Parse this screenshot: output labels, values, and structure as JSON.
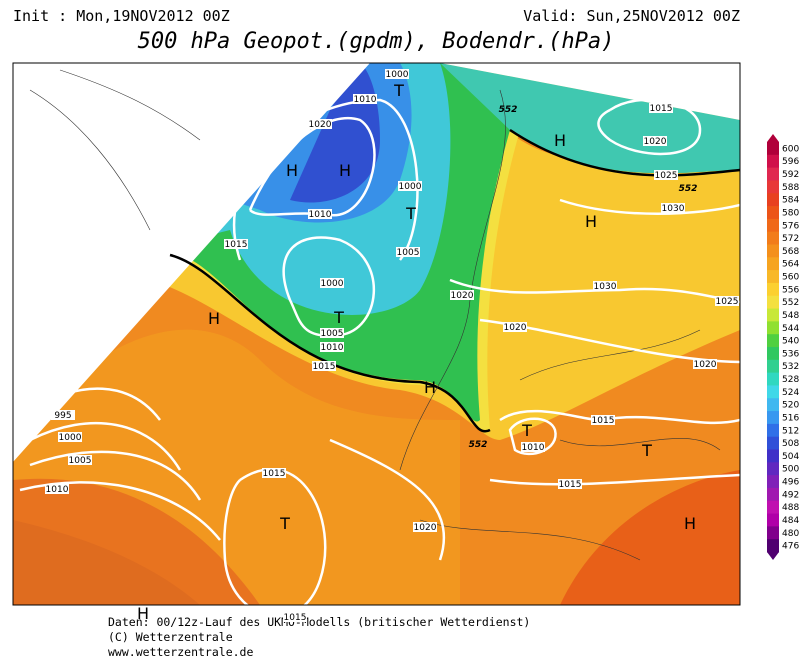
{
  "header": {
    "init": "Init : Mon,19NOV2012 00Z",
    "valid": "Valid: Sun,25NOV2012 00Z",
    "title": "500 hPa Geopot.(gpdm), Bodendr.(hPa)"
  },
  "legend": {
    "ticks": [
      600,
      596,
      592,
      588,
      584,
      580,
      576,
      572,
      568,
      564,
      560,
      556,
      552,
      548,
      544,
      540,
      536,
      532,
      528,
      524,
      520,
      516,
      512,
      508,
      504,
      500,
      496,
      492,
      488,
      484,
      480,
      476
    ],
    "colors": [
      "#b0003a",
      "#d0104a",
      "#e02850",
      "#e83838",
      "#e84020",
      "#ec5418",
      "#f06818",
      "#f27c1a",
      "#f4901c",
      "#f6a420",
      "#f8b828",
      "#fcd030",
      "#f4e040",
      "#c8e838",
      "#90e030",
      "#50d040",
      "#30c860",
      "#30d090",
      "#30d8c0",
      "#40d8e8",
      "#40b8f0",
      "#3898f0",
      "#3070e8",
      "#3050d8",
      "#4030c8",
      "#6028c0",
      "#8020b8",
      "#a018b0",
      "#c010b0",
      "#b000a8",
      "#80008c",
      "#500070"
    ]
  },
  "geopotential_labels": [
    552,
    552,
    552
  ],
  "isobar_labels": [
    1000,
    1010,
    1020,
    1010,
    1015,
    1005,
    1000,
    1000,
    1005,
    1010,
    1015,
    995,
    1000,
    1005,
    1010,
    1015,
    1020,
    1015,
    1020,
    1020,
    1030,
    1025,
    1020,
    1015,
    1010,
    1015,
    1030,
    1025,
    1020,
    1015
  ],
  "pressure_centers": [
    "H",
    "H",
    "T",
    "T",
    "T",
    "H",
    "H",
    "H",
    "H",
    "T",
    "T",
    "H",
    "T",
    "H"
  ],
  "footer": [
    "Daten: 00/12z-Lauf des UKMO-Modells (britischer Wetterdienst)",
    "(C) Wetterzentrale",
    "www.wetterzentrale.de"
  ]
}
